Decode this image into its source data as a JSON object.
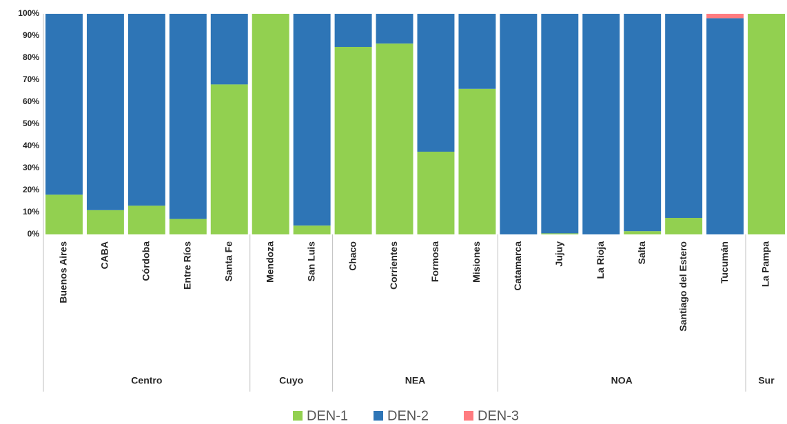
{
  "chart_data": {
    "type": "stacked_bar",
    "groups": [
      {
        "name": "Centro",
        "categories": [
          "Buenos Aires",
          "CABA",
          "Córdoba",
          "Entre Ríos",
          "Santa Fe"
        ]
      },
      {
        "name": "Cuyo",
        "categories": [
          "Mendoza",
          "San Luis"
        ]
      },
      {
        "name": "NEA",
        "categories": [
          "Chaco",
          "Corrientes",
          "Formosa",
          "Misiones"
        ]
      },
      {
        "name": "NOA",
        "categories": [
          "Catamarca",
          "Jujuy",
          "La Rioja",
          "Salta",
          "Santiago del Estero",
          "Tucumán"
        ]
      },
      {
        "name": "Sur",
        "categories": [
          "La Pampa"
        ]
      }
    ],
    "series": [
      {
        "name": "DEN-1",
        "color": "#92d050",
        "values": [
          18,
          11,
          13,
          7,
          68,
          100,
          4,
          85,
          86.5,
          37.5,
          66,
          0,
          0.5,
          0,
          1.5,
          7.5,
          0,
          100
        ]
      },
      {
        "name": "DEN-2",
        "color": "#2e75b6",
        "values": [
          82,
          89,
          87,
          93,
          32,
          0,
          96,
          15,
          13.5,
          62.5,
          34,
          100,
          99.5,
          100,
          98.5,
          92.5,
          98,
          0
        ]
      },
      {
        "name": "DEN-3",
        "color": "#ff7c80",
        "values": [
          0,
          0,
          0,
          0,
          0,
          0,
          0,
          0,
          0,
          0,
          0,
          0,
          0,
          0,
          0,
          0,
          2,
          0
        ]
      }
    ],
    "ylim": [
      0,
      100
    ],
    "yticks": [
      {
        "value": 0,
        "label": "0%"
      },
      {
        "value": 10,
        "label": "10%"
      },
      {
        "value": 20,
        "label": "20%"
      },
      {
        "value": 30,
        "label": "30%"
      },
      {
        "value": 40,
        "label": "40%"
      },
      {
        "value": 50,
        "label": "50%"
      },
      {
        "value": 60,
        "label": "60%"
      },
      {
        "value": 70,
        "label": "70%"
      },
      {
        "value": 80,
        "label": "80%"
      },
      {
        "value": 90,
        "label": "90%"
      },
      {
        "value": 100,
        "label": "100%"
      }
    ],
    "grid": false,
    "legend": "bottom"
  }
}
